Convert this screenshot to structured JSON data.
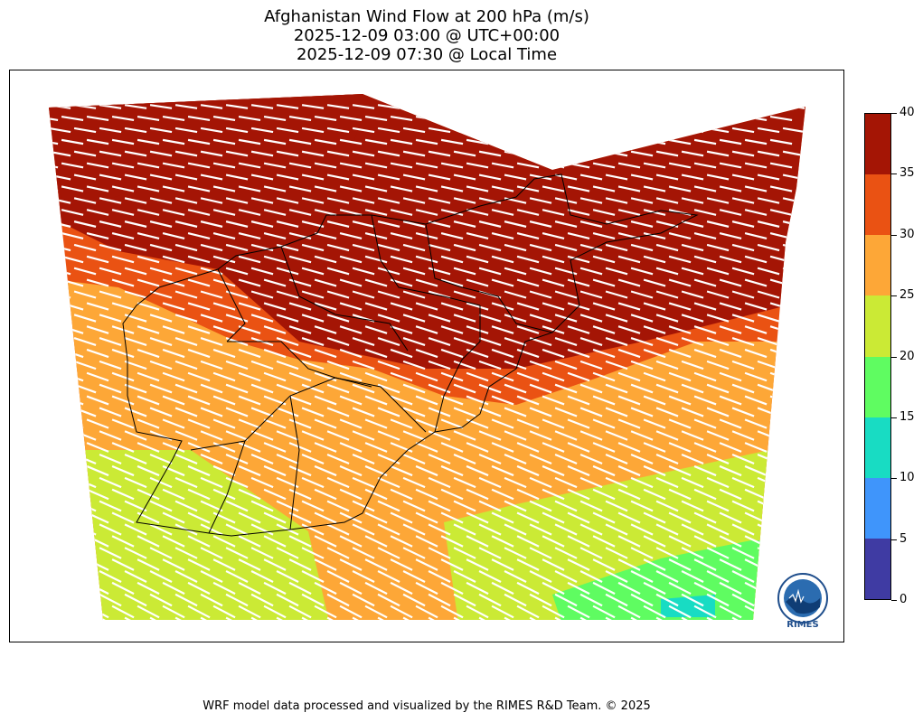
{
  "title": {
    "line1": "Afghanistan Wind Flow at 200 hPa (m/s)",
    "line2": "2025-12-09 03:00 @ UTC+00:00",
    "line3": "2025-12-09 07:30 @ Local Time"
  },
  "colorbar": {
    "ticks": [
      "0",
      "5",
      "10",
      "15",
      "20",
      "25",
      "30",
      "35",
      "40"
    ],
    "levels": [
      {
        "from": 0,
        "to": 5,
        "color": "#3f3ba3"
      },
      {
        "from": 5,
        "to": 10,
        "color": "#3f95fb"
      },
      {
        "from": 10,
        "to": 15,
        "color": "#18dcc3"
      },
      {
        "from": 15,
        "to": 20,
        "color": "#5ffc61"
      },
      {
        "from": 20,
        "to": 25,
        "color": "#cbea35"
      },
      {
        "from": 25,
        "to": 30,
        "color": "#fda737"
      },
      {
        "from": 30,
        "to": 35,
        "color": "#ea5213"
      },
      {
        "from": 35,
        "to": 40,
        "color": "#a41505"
      }
    ]
  },
  "map": {
    "region": "Afghanistan",
    "field": "wind speed at 200 hPa",
    "units": "m/s",
    "vector_color": "#ffffff",
    "boundary_color": "#000000"
  },
  "logo": {
    "text": "RIMES"
  },
  "footer": "WRF model data processed and visualized by the RIMES R&D Team. © 2025"
}
